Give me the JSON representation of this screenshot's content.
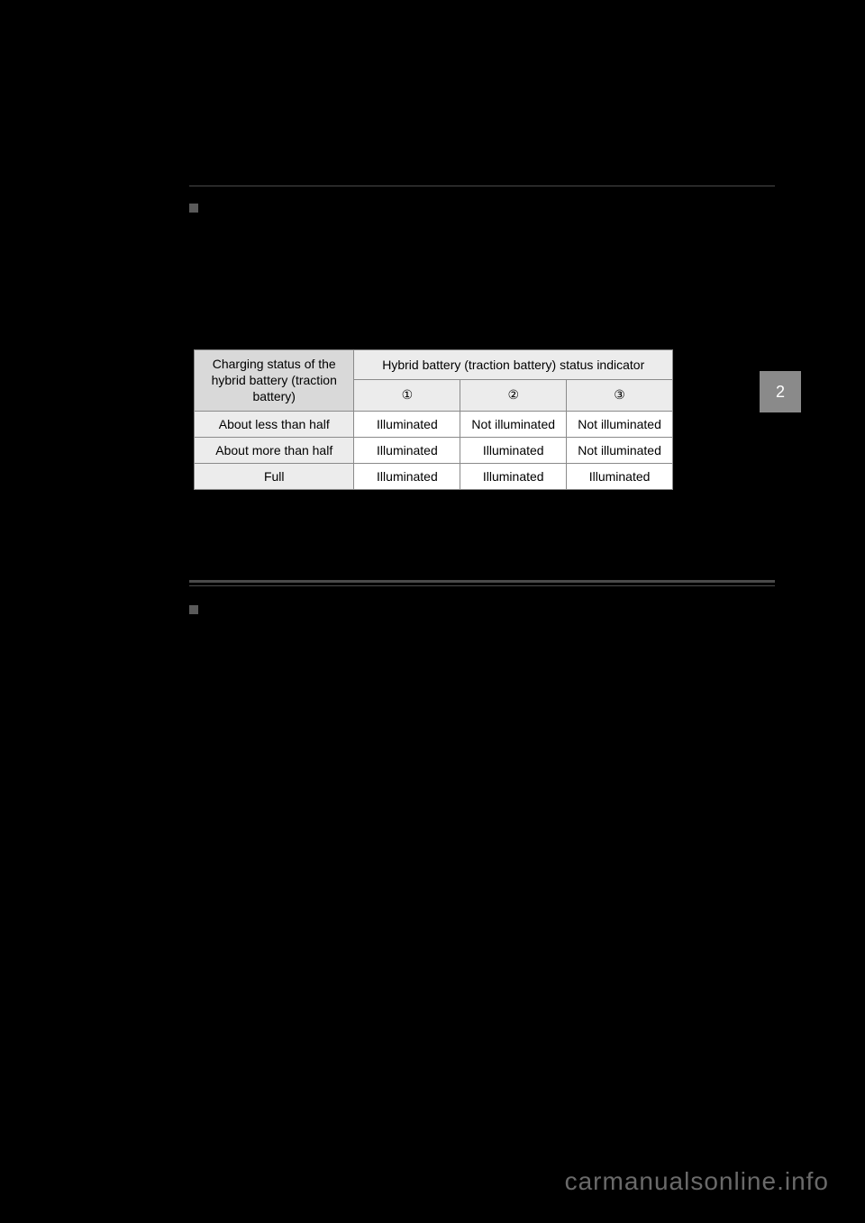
{
  "side_tab": {
    "label": "2"
  },
  "table": {
    "header_left": "Charging status of the hybrid battery (traction battery)",
    "header_right": "Hybrid battery (traction battery) status indicator",
    "sub_headers": [
      "①",
      "②",
      "③"
    ],
    "rows": [
      {
        "label": "About less than half",
        "cells": [
          "Illuminated",
          "Not illuminated",
          "Not illuminated"
        ]
      },
      {
        "label": "About more than half",
        "cells": [
          "Illuminated",
          "Illuminated",
          "Not illuminated"
        ]
      },
      {
        "label": "Full",
        "cells": [
          "Illuminated",
          "Illuminated",
          "Illuminated"
        ]
      }
    ]
  },
  "watermark": "carmanualsonline.info"
}
